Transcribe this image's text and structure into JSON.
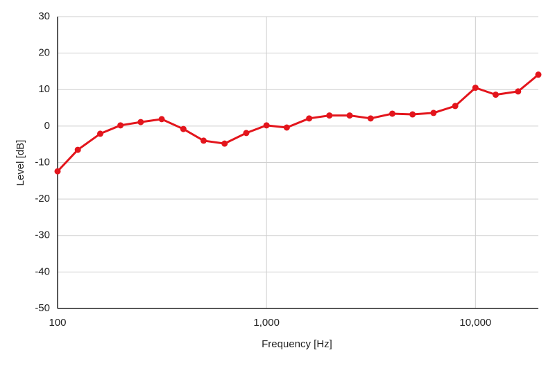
{
  "chart_data": {
    "type": "line",
    "x_scale": "log",
    "grid": true,
    "xlabel": "Frequency [Hz]",
    "ylabel": "Level [dB]",
    "x": [
      100,
      125,
      160,
      200,
      250,
      315,
      400,
      500,
      630,
      800,
      1000,
      1250,
      1600,
      2000,
      2500,
      3150,
      4000,
      5000,
      6300,
      8000,
      10000,
      12500,
      16000,
      20000
    ],
    "series": [
      {
        "name": "Level",
        "color": "#e3151c",
        "values": [
          -12.4,
          -6.5,
          -2.1,
          0.2,
          1.1,
          1.9,
          -0.8,
          -4.0,
          -4.8,
          -1.9,
          0.2,
          -0.4,
          2.1,
          2.9,
          2.9,
          2.1,
          3.4,
          3.2,
          3.6,
          5.5,
          10.5,
          8.6,
          9.5,
          14.1
        ]
      }
    ],
    "xlim": [
      100,
      20000
    ],
    "xticks": [
      100,
      {
        "value": 1000,
        "label": "1,000"
      },
      {
        "value": 10000,
        "label": "10,000"
      }
    ],
    "ylim": [
      -50,
      30
    ],
    "yticks": [
      -50,
      -40,
      -30,
      -20,
      -10,
      0,
      10,
      20,
      30
    ]
  }
}
